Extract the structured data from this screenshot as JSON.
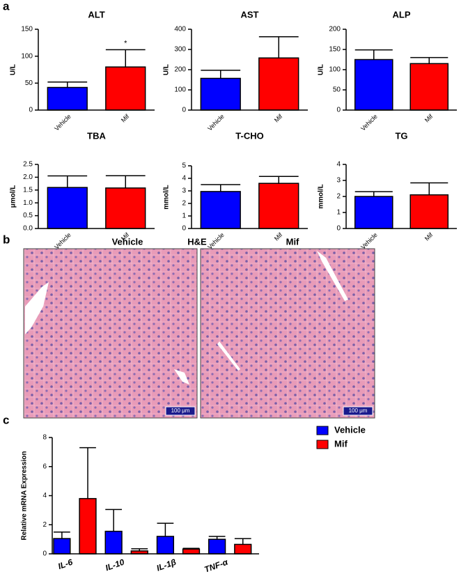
{
  "panel_labels": [
    "a",
    "b",
    "c"
  ],
  "histology": {
    "method": "H&E",
    "images": [
      {
        "title": "Vehicle",
        "scale_bar": "100 μm"
      },
      {
        "title": "Mif",
        "scale_bar": "100 μm"
      }
    ]
  },
  "chart_data": [
    {
      "type": "bar",
      "title": "ALT",
      "ylabel": "U/L",
      "categories": [
        "Vehicle",
        "Mif"
      ],
      "values": [
        42,
        80
      ],
      "errors": [
        10,
        32
      ],
      "colors": [
        "#0000ff",
        "#ff0000"
      ],
      "significance": [
        null,
        "*"
      ],
      "ylim": [
        0,
        150
      ],
      "yticks": [
        0,
        50,
        100,
        150
      ]
    },
    {
      "type": "bar",
      "title": "AST",
      "ylabel": "U/L",
      "categories": [
        "Vehicle",
        "Mif"
      ],
      "values": [
        157,
        258
      ],
      "errors": [
        40,
        105
      ],
      "colors": [
        "#0000ff",
        "#ff0000"
      ],
      "ylim": [
        0,
        400
      ],
      "yticks": [
        0,
        100,
        200,
        300,
        400
      ]
    },
    {
      "type": "bar",
      "title": "ALP",
      "ylabel": "U/L",
      "categories": [
        "Vehicle",
        "Mif"
      ],
      "values": [
        125,
        115
      ],
      "errors": [
        24,
        15
      ],
      "colors": [
        "#0000ff",
        "#ff0000"
      ],
      "ylim": [
        0,
        200
      ],
      "yticks": [
        0,
        50,
        100,
        150,
        200
      ]
    },
    {
      "type": "bar",
      "title": "TBA",
      "ylabel": "μmol/L",
      "categories": [
        "Vehicle",
        "Mif"
      ],
      "values": [
        1.6,
        1.58
      ],
      "errors": [
        0.45,
        0.48
      ],
      "colors": [
        "#0000ff",
        "#ff0000"
      ],
      "ylim": [
        0,
        2.5
      ],
      "yticks": [
        {
          "value": 0,
          "label": "0.0"
        },
        0.5,
        {
          "value": 1,
          "label": "1.0"
        },
        1.5,
        {
          "value": 2,
          "label": "2.0"
        },
        2.5
      ]
    },
    {
      "type": "bar",
      "title": "T-CHO",
      "ylabel": "mmol/L",
      "categories": [
        "Vehicle",
        "Mif"
      ],
      "values": [
        2.95,
        3.6
      ],
      "errors": [
        0.55,
        0.55
      ],
      "colors": [
        "#0000ff",
        "#ff0000"
      ],
      "ylim": [
        0,
        5
      ],
      "yticks": [
        0,
        1,
        2,
        3,
        4,
        5
      ]
    },
    {
      "type": "bar",
      "title": "TG",
      "ylabel": "mmol/L",
      "categories": [
        "Vehicle",
        "Mif"
      ],
      "values": [
        2.0,
        2.1
      ],
      "errors": [
        0.3,
        0.75
      ],
      "colors": [
        "#0000ff",
        "#ff0000"
      ],
      "ylim": [
        0,
        4
      ],
      "yticks": [
        0,
        1,
        2,
        3,
        4
      ]
    },
    {
      "type": "bar",
      "ylabel": "Relative mRNA Expression",
      "categories": [
        "IL-6",
        "IL-10",
        "IL-1β",
        "TNF-α"
      ],
      "legend": "top-right",
      "series": [
        {
          "name": "Vehicle",
          "color": "#0000ff",
          "values": [
            1.05,
            1.55,
            1.2,
            1.0
          ],
          "errors": [
            0.45,
            1.5,
            0.9,
            0.2
          ]
        },
        {
          "name": "Mif",
          "color": "#ff0000",
          "values": [
            3.8,
            0.2,
            0.33,
            0.65
          ],
          "errors": [
            3.5,
            0.15,
            0.05,
            0.4
          ]
        }
      ],
      "ylim": [
        0,
        8
      ],
      "yticks": [
        0,
        2,
        4,
        6,
        8
      ]
    }
  ]
}
